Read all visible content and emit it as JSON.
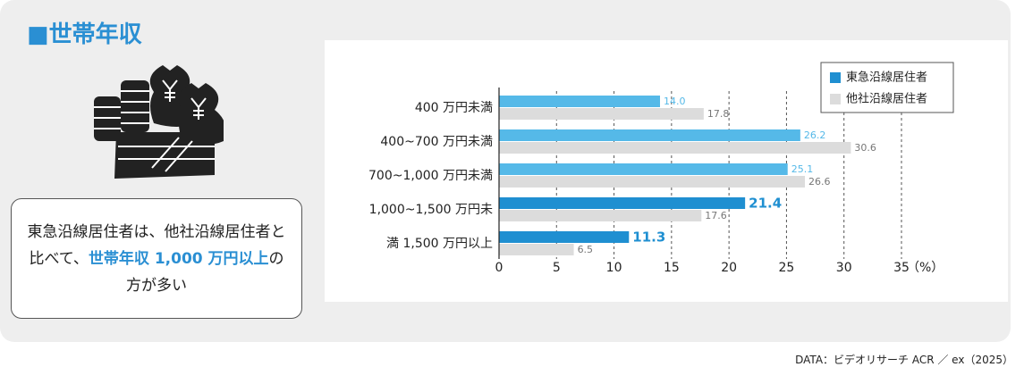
{
  "title": "■世帯年収",
  "callout": [
    "東急沿線居住者は、他社沿線居住者と比べて、",
    "世帯年収 1,000 万円以上",
    "の方が多い"
  ],
  "source": "DATA：ビデオリサーチ ACR ／ ex（2025）",
  "chart_data": {
    "type": "bar",
    "orientation": "horizontal",
    "categories": [
      "400 万円未満",
      "400~700 万円未満",
      "700~1,000 万円未満",
      "1,000~1,500 万円未",
      "満 1,500 万円以上"
    ],
    "series": [
      {
        "name": "東急沿線居住者",
        "color": "#1f8fd1",
        "colors": [
          "#55b9e8",
          "#55b9e8",
          "#55b9e8",
          "#1f8fd1",
          "#1f8fd1"
        ],
        "highlight": [
          false,
          false,
          false,
          true,
          true
        ],
        "values": [
          14.0,
          26.2,
          25.1,
          21.4,
          11.3
        ],
        "value_labels": [
          "14.0",
          "26.2",
          "25.1",
          "21.4",
          "11.3"
        ]
      },
      {
        "name": "他社沿線居住者",
        "color": "#dcdcdc",
        "values": [
          17.8,
          30.6,
          26.6,
          17.6,
          6.5
        ]
      }
    ],
    "xlim": [
      0,
      35
    ],
    "xticks": [
      0,
      5,
      10,
      15,
      20,
      25,
      30,
      35
    ],
    "unit": "（%）",
    "grid": true,
    "legend": "top-right"
  }
}
